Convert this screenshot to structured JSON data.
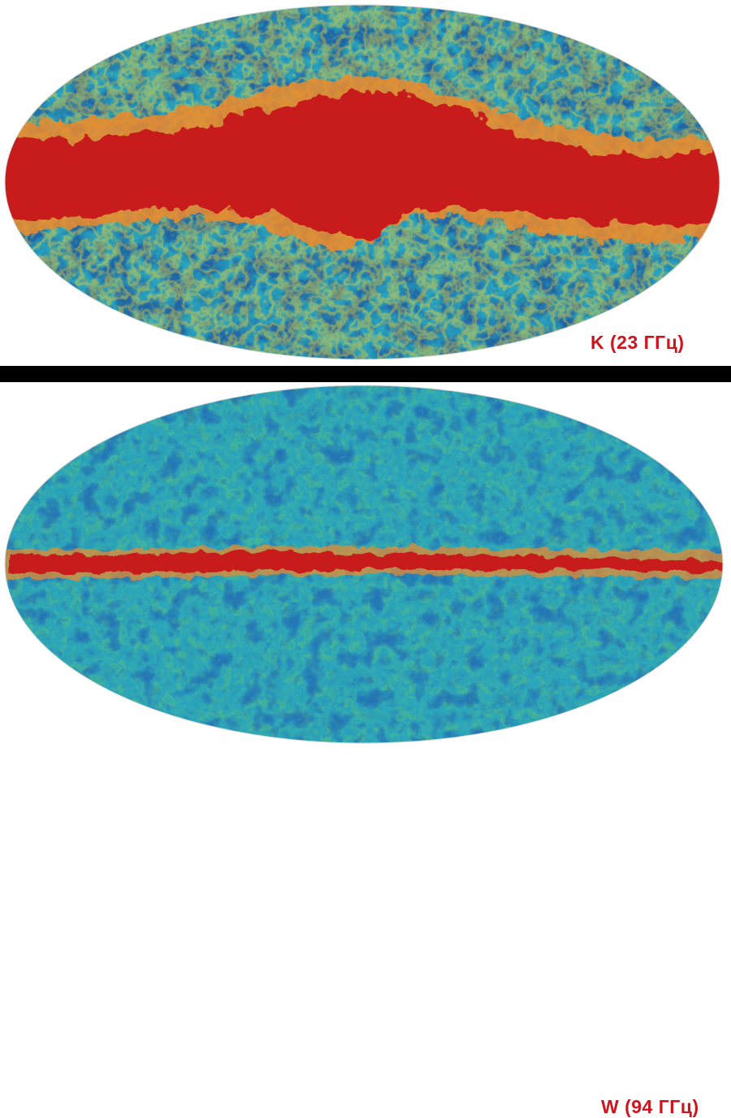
{
  "maps": {
    "k": {
      "label": "K (23 ГГц)",
      "band_strength": 1.0
    },
    "w": {
      "label": "W (94 ГГц)",
      "band_strength": 0.3
    }
  },
  "colors": {
    "background": "#ffffff",
    "separator": "#000000",
    "label_text": "#d0141e",
    "galactic_plane": "#c81e1e",
    "deep_blue": "#142a8c",
    "blue": "#1f64b4",
    "cyan": "#2aa6bf",
    "green": "#5ac27c",
    "yellow": "#e7d23c",
    "orange": "#ef8a28"
  }
}
